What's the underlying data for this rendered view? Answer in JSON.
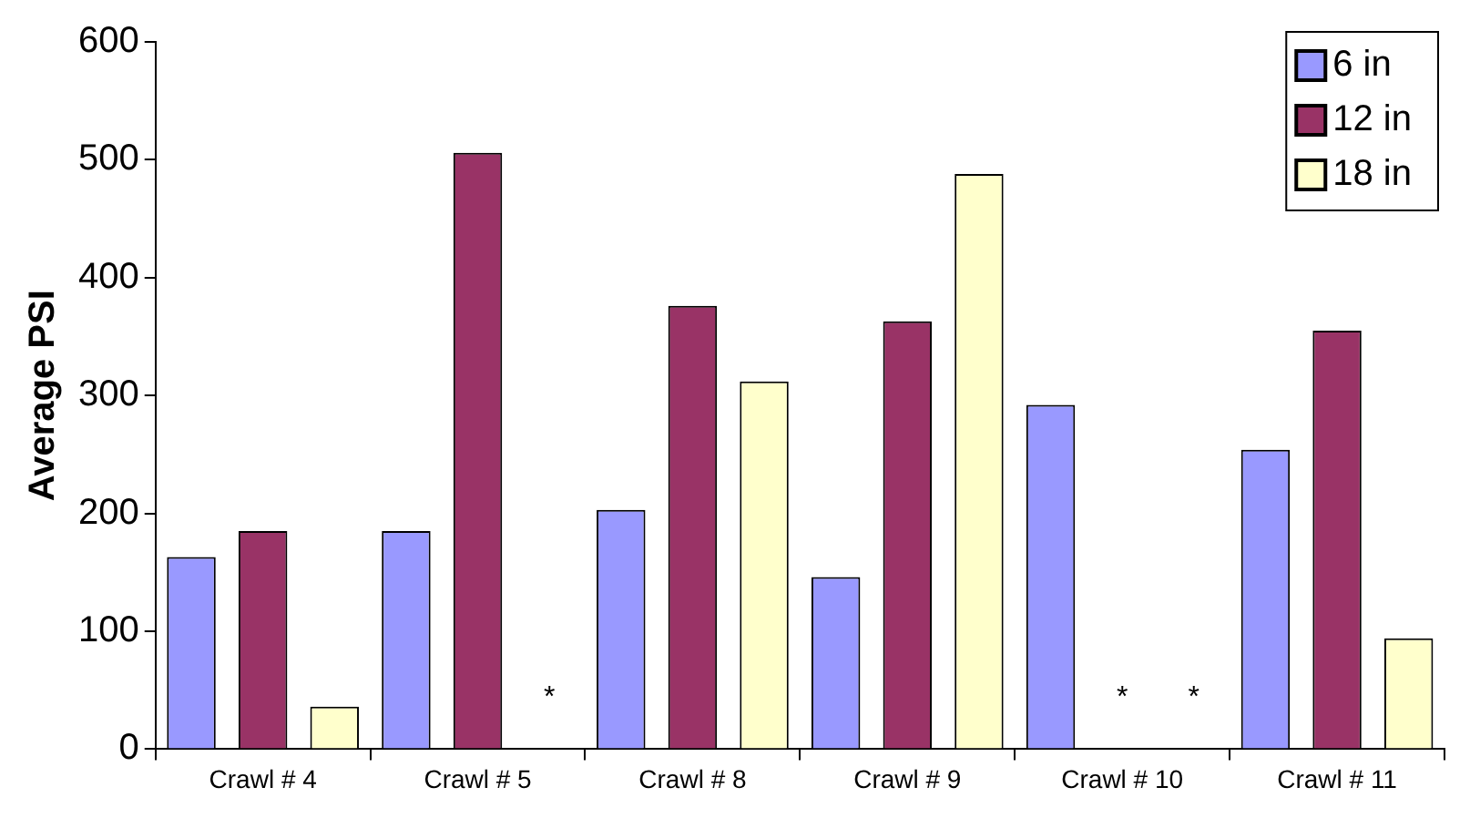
{
  "chart_data": {
    "type": "bar",
    "ylabel": "Average PSI",
    "categories": [
      "Crawl # 4",
      "Crawl # 5",
      "Crawl # 8",
      "Crawl # 9",
      "Crawl # 10",
      "Crawl # 11"
    ],
    "series": [
      {
        "name": "6 in",
        "color": "#9999ff",
        "values": [
          163,
          185,
          203,
          146,
          292,
          254
        ]
      },
      {
        "name": "12 in",
        "color": "#993366",
        "values": [
          185,
          506,
          376,
          363,
          null,
          355
        ]
      },
      {
        "name": "18 in",
        "color": "#ffffcc",
        "values": [
          36,
          null,
          312,
          488,
          null,
          94
        ]
      }
    ],
    "ylim": [
      0,
      600
    ],
    "yticks": [
      0,
      100,
      200,
      300,
      400,
      500,
      600
    ],
    "grid": false,
    "legend": "top right",
    "annotations": [
      "*",
      "*",
      "*"
    ]
  }
}
